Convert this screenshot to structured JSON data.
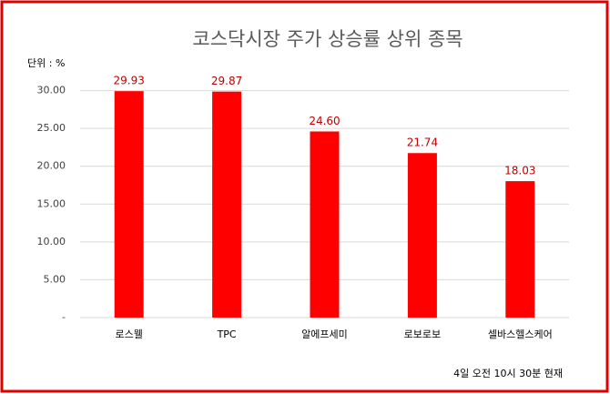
{
  "chart_data": {
    "type": "bar",
    "title": "코스닥시장 주가 상승률 상위 종목",
    "unit_label": "단위 : %",
    "note": "4일  오전 10시 30분 현재",
    "categories": [
      "로스웰",
      "TPC",
      "알에프세미",
      "로보로보",
      "셀바스헬스케어"
    ],
    "values": [
      29.93,
      29.87,
      24.6,
      21.74,
      18.03
    ],
    "value_labels": [
      "29.93",
      "29.87",
      "24.60",
      "21.74",
      "18.03"
    ],
    "color": "#ff0000",
    "ylim": [
      0,
      35
    ],
    "yticks": [
      {
        "value": 0,
        "label": "-"
      },
      {
        "value": 5,
        "label": "5.00"
      },
      {
        "value": 10,
        "label": "10.00"
      },
      {
        "value": 15,
        "label": "15.00"
      },
      {
        "value": 20,
        "label": "20.00"
      },
      {
        "value": 25,
        "label": "25.00"
      },
      {
        "value": 30,
        "label": "30.00"
      }
    ],
    "grid": true
  }
}
